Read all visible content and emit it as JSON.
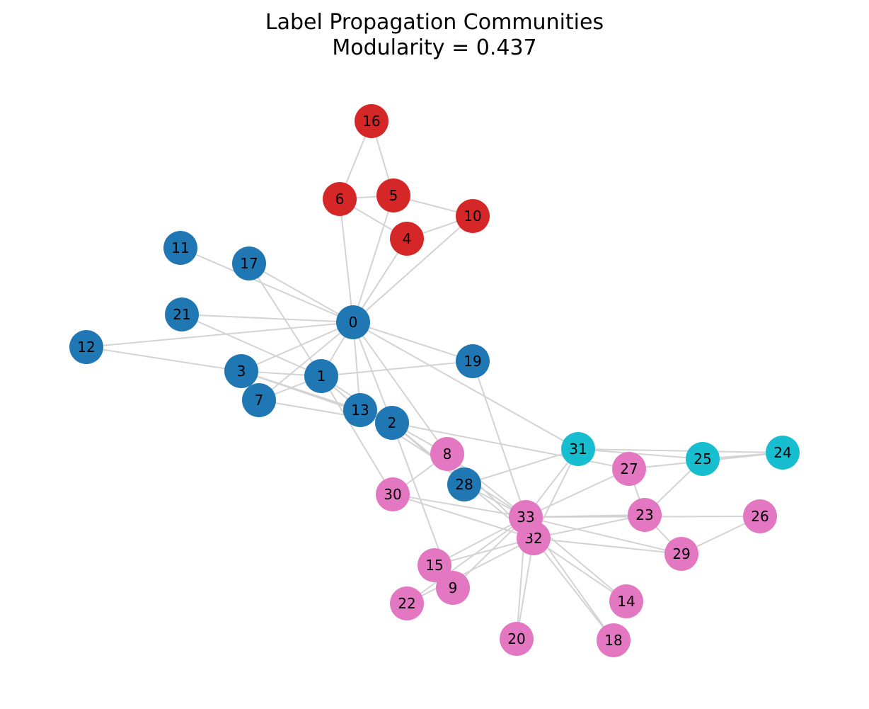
{
  "title": {
    "line1": "Label Propagation Communities",
    "line2": "Modularity = 0.437"
  },
  "colors": {
    "edge": "#d3d3d3",
    "community_blue": "#1f77b4",
    "community_red": "#d62728",
    "community_pink": "#e377c2",
    "community_cyan": "#17becf"
  },
  "graph": {
    "nodes": [
      {
        "id": 0,
        "label": "0",
        "community": "blue"
      },
      {
        "id": 1,
        "label": "1",
        "community": "blue"
      },
      {
        "id": 2,
        "label": "2",
        "community": "blue"
      },
      {
        "id": 3,
        "label": "3",
        "community": "blue"
      },
      {
        "id": 4,
        "label": "4",
        "community": "red"
      },
      {
        "id": 5,
        "label": "5",
        "community": "red"
      },
      {
        "id": 6,
        "label": "6",
        "community": "red"
      },
      {
        "id": 7,
        "label": "7",
        "community": "blue"
      },
      {
        "id": 8,
        "label": "8",
        "community": "pink"
      },
      {
        "id": 9,
        "label": "9",
        "community": "pink"
      },
      {
        "id": 10,
        "label": "10",
        "community": "red"
      },
      {
        "id": 11,
        "label": "11",
        "community": "blue"
      },
      {
        "id": 12,
        "label": "12",
        "community": "blue"
      },
      {
        "id": 13,
        "label": "13",
        "community": "blue"
      },
      {
        "id": 14,
        "label": "14",
        "community": "pink"
      },
      {
        "id": 15,
        "label": "15",
        "community": "pink"
      },
      {
        "id": 16,
        "label": "16",
        "community": "red"
      },
      {
        "id": 17,
        "label": "17",
        "community": "blue"
      },
      {
        "id": 18,
        "label": "18",
        "community": "pink"
      },
      {
        "id": 19,
        "label": "19",
        "community": "blue"
      },
      {
        "id": 20,
        "label": "20",
        "community": "pink"
      },
      {
        "id": 21,
        "label": "21",
        "community": "blue"
      },
      {
        "id": 22,
        "label": "22",
        "community": "pink"
      },
      {
        "id": 23,
        "label": "23",
        "community": "pink"
      },
      {
        "id": 24,
        "label": "24",
        "community": "cyan"
      },
      {
        "id": 25,
        "label": "25",
        "community": "cyan"
      },
      {
        "id": 26,
        "label": "26",
        "community": "pink"
      },
      {
        "id": 27,
        "label": "27",
        "community": "pink"
      },
      {
        "id": 28,
        "label": "28",
        "community": "blue"
      },
      {
        "id": 29,
        "label": "29",
        "community": "pink"
      },
      {
        "id": 30,
        "label": "30",
        "community": "pink"
      },
      {
        "id": 31,
        "label": "31",
        "community": "cyan"
      },
      {
        "id": 32,
        "label": "32",
        "community": "pink"
      },
      {
        "id": 33,
        "label": "33",
        "community": "pink"
      }
    ],
    "edges": [
      [
        0,
        1
      ],
      [
        0,
        2
      ],
      [
        0,
        3
      ],
      [
        0,
        4
      ],
      [
        0,
        5
      ],
      [
        0,
        6
      ],
      [
        0,
        7
      ],
      [
        0,
        8
      ],
      [
        0,
        10
      ],
      [
        0,
        11
      ],
      [
        0,
        12
      ],
      [
        0,
        13
      ],
      [
        0,
        17
      ],
      [
        0,
        19
      ],
      [
        0,
        21
      ],
      [
        0,
        31
      ],
      [
        1,
        2
      ],
      [
        1,
        3
      ],
      [
        1,
        7
      ],
      [
        1,
        13
      ],
      [
        1,
        17
      ],
      [
        1,
        19
      ],
      [
        1,
        21
      ],
      [
        1,
        30
      ],
      [
        2,
        3
      ],
      [
        2,
        7
      ],
      [
        2,
        8
      ],
      [
        2,
        9
      ],
      [
        2,
        13
      ],
      [
        2,
        27
      ],
      [
        2,
        28
      ],
      [
        2,
        32
      ],
      [
        3,
        7
      ],
      [
        3,
        12
      ],
      [
        3,
        13
      ],
      [
        4,
        6
      ],
      [
        4,
        10
      ],
      [
        5,
        6
      ],
      [
        5,
        10
      ],
      [
        5,
        16
      ],
      [
        6,
        16
      ],
      [
        8,
        30
      ],
      [
        8,
        32
      ],
      [
        8,
        33
      ],
      [
        9,
        33
      ],
      [
        13,
        33
      ],
      [
        14,
        32
      ],
      [
        14,
        33
      ],
      [
        15,
        32
      ],
      [
        15,
        33
      ],
      [
        18,
        32
      ],
      [
        18,
        33
      ],
      [
        19,
        33
      ],
      [
        20,
        32
      ],
      [
        20,
        33
      ],
      [
        22,
        32
      ],
      [
        22,
        33
      ],
      [
        23,
        25
      ],
      [
        23,
        27
      ],
      [
        23,
        29
      ],
      [
        23,
        32
      ],
      [
        23,
        33
      ],
      [
        24,
        25
      ],
      [
        24,
        27
      ],
      [
        24,
        31
      ],
      [
        25,
        31
      ],
      [
        26,
        29
      ],
      [
        26,
        33
      ],
      [
        27,
        33
      ],
      [
        28,
        31
      ],
      [
        28,
        33
      ],
      [
        29,
        32
      ],
      [
        29,
        33
      ],
      [
        30,
        32
      ],
      [
        30,
        33
      ],
      [
        31,
        32
      ],
      [
        31,
        33
      ],
      [
        32,
        33
      ]
    ]
  }
}
